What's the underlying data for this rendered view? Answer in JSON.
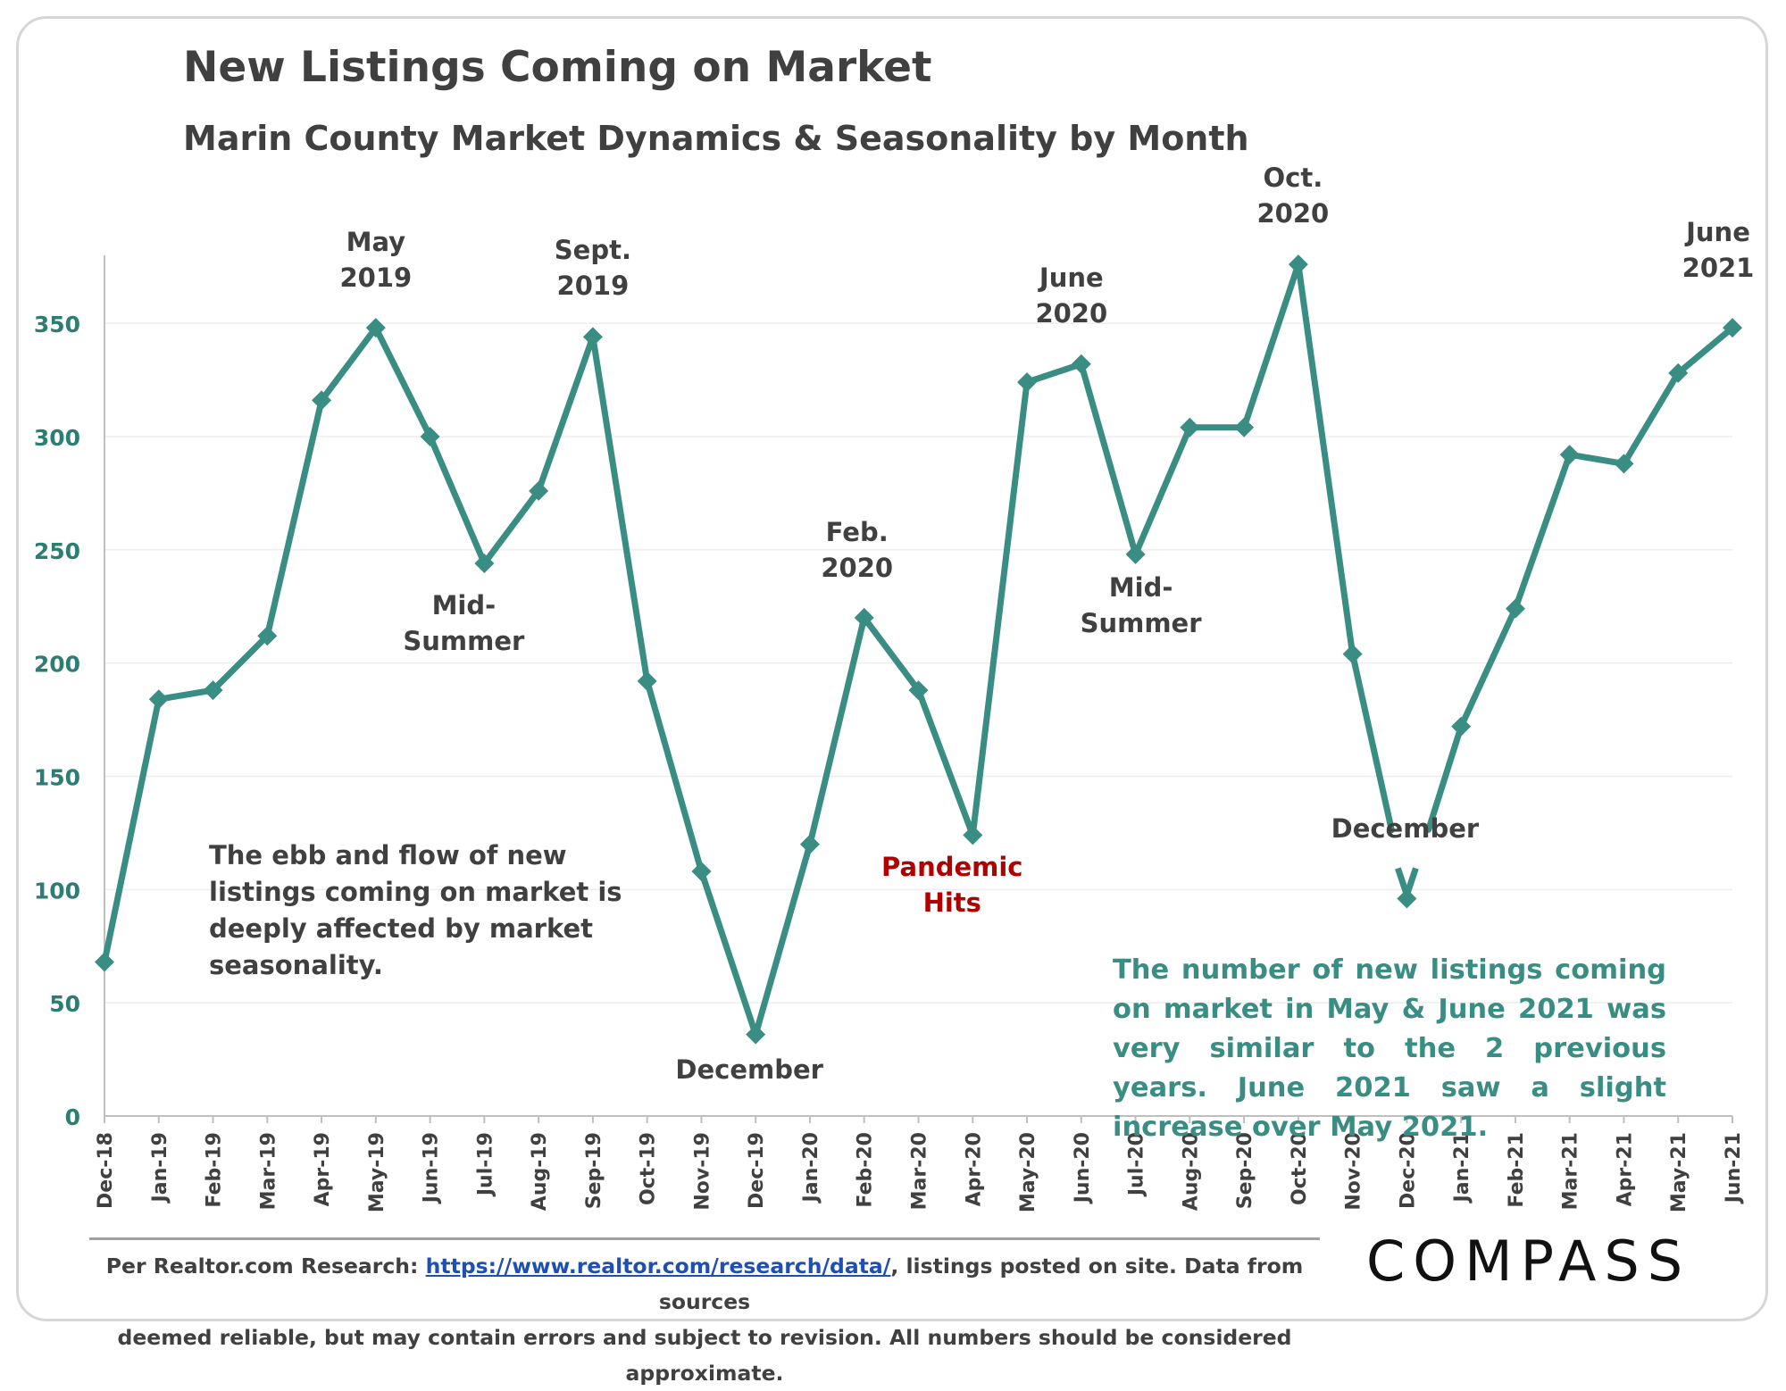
{
  "title": "New Listings Coming on Market",
  "subtitle": "Marin County Market Dynamics & Seasonality by Month",
  "colors": {
    "line": "#3a8d83",
    "axis_tick": "#2e7d72",
    "text": "#404040",
    "alert": "#b00000",
    "note": "#3a8d83"
  },
  "chart_data": {
    "type": "line",
    "categories": [
      "Dec-18",
      "Jan-19",
      "Feb-19",
      "Mar-19",
      "Apr-19",
      "May-19",
      "Jun-19",
      "Jul-19",
      "Aug-19",
      "Sep-19",
      "Oct-19",
      "Nov-19",
      "Dec-19",
      "Jan-20",
      "Feb-20",
      "Mar-20",
      "Apr-20",
      "May-20",
      "Jun-20",
      "Jul-20",
      "Aug-20",
      "Sep-20",
      "Oct-20",
      "Nov-20",
      "Dec-20",
      "Jan-21",
      "Feb-21",
      "Mar-21",
      "Apr-21",
      "May-21",
      "Jun-21"
    ],
    "series": [
      {
        "values": [
          68,
          184,
          188,
          212,
          316,
          348,
          300,
          244,
          276,
          344,
          192,
          108,
          36,
          120,
          220,
          188,
          124,
          324,
          332,
          248,
          304,
          304,
          376,
          204,
          96,
          172,
          224,
          292,
          288,
          328,
          348
        ]
      }
    ],
    "yticks": [
      0,
      50,
      100,
      150,
      200,
      250,
      300,
      350
    ],
    "ylim": [
      0,
      380
    ],
    "grid": true,
    "gap_between": [
      "Nov-20",
      "Dec-20"
    ],
    "annotations": [
      {
        "lines": [
          "May",
          "2019"
        ],
        "x": "May-19",
        "color": "text"
      },
      {
        "lines": [
          "Sept.",
          "2019"
        ],
        "x": "Sep-19",
        "color": "text"
      },
      {
        "lines": [
          "Mid-",
          "Summer"
        ],
        "x": "Jul-19",
        "color": "text"
      },
      {
        "lines": [
          "December"
        ],
        "x": "Dec-19",
        "color": "text"
      },
      {
        "lines": [
          "Feb.",
          "2020"
        ],
        "x": "Feb-20",
        "color": "text"
      },
      {
        "lines": [
          "Pandemic",
          "Hits"
        ],
        "x": "Apr-20",
        "color": "alert"
      },
      {
        "lines": [
          "June",
          "2020"
        ],
        "x": "Jun-20",
        "color": "text"
      },
      {
        "lines": [
          "Mid-",
          "Summer"
        ],
        "x": "Jul-20",
        "color": "text"
      },
      {
        "lines": [
          "Oct.",
          "2020"
        ],
        "x": "Oct-20",
        "color": "text"
      },
      {
        "lines": [
          "December"
        ],
        "x": "Dec-20",
        "color": "text"
      },
      {
        "lines": [
          "June",
          "2021"
        ],
        "x": "Jun-21",
        "color": "text"
      }
    ]
  },
  "notes": {
    "left": "The ebb and flow of new listings coming on market is deeply affected by market seasonality.",
    "right": "The number of new listings coming on market in May & June 2021 was very similar to the 2 previous years. June 2021 saw a slight increase over May 2021."
  },
  "footer": {
    "prefix": "Per Realtor.com Research: ",
    "link": "https://www.realtor.com/research/data/",
    "line1_suffix": ", listings posted on site. Data from sources",
    "line2": "deemed reliable, but may contain errors and subject to revision. All numbers should be considered approximate."
  },
  "logo": "COMPASS"
}
